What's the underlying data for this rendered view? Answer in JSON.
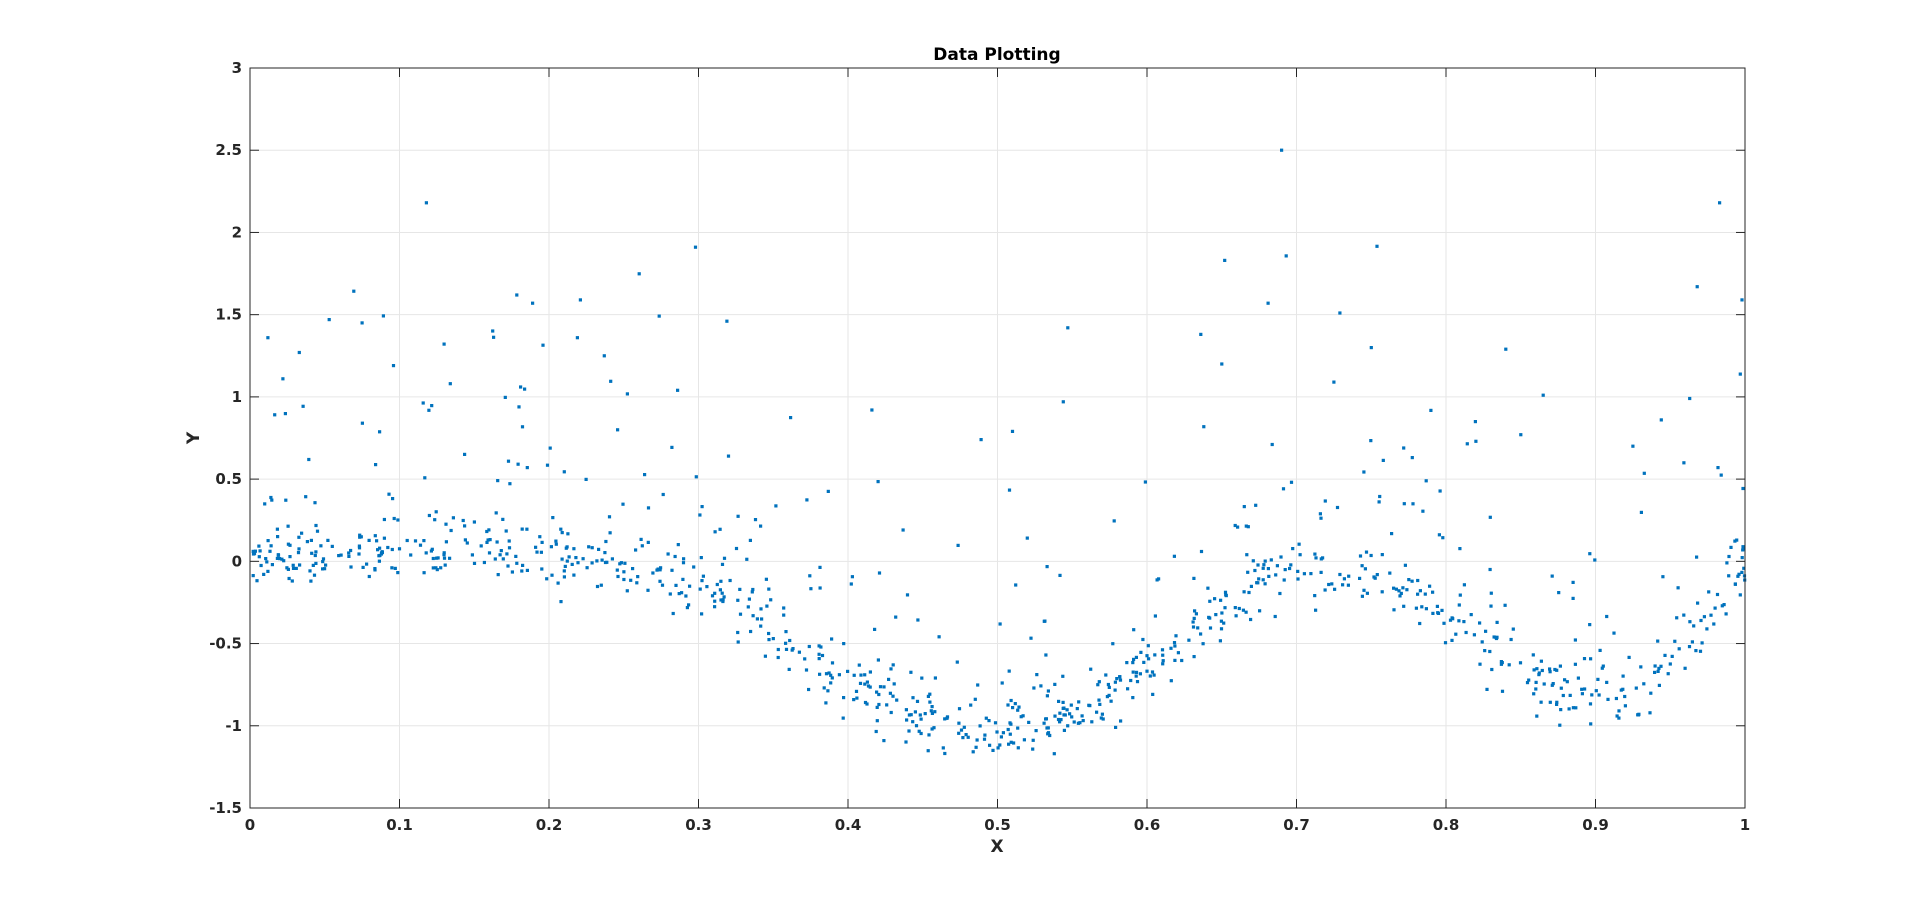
{
  "chart_data": {
    "type": "scatter",
    "title": "Data Plotting",
    "xlabel": "X",
    "ylabel": "Y",
    "xlim": [
      0,
      1
    ],
    "ylim": [
      -1.5,
      3
    ],
    "x_ticks": [
      0,
      0.1,
      0.2,
      0.3,
      0.4,
      0.5,
      0.6,
      0.7,
      0.8,
      0.9,
      1
    ],
    "x_tick_labels": [
      "0",
      "0.1",
      "0.2",
      "0.3",
      "0.4",
      "0.5",
      "0.6",
      "0.7",
      "0.8",
      "0.9",
      "1"
    ],
    "y_ticks": [
      -1.5,
      -1,
      -0.5,
      0,
      0.5,
      1,
      1.5,
      2,
      2.5,
      3
    ],
    "y_tick_labels": [
      "-1.5",
      "-1",
      "-0.5",
      "0",
      "0.5",
      "1",
      "1.5",
      "2",
      "2.5",
      "3"
    ],
    "grid": true,
    "marker_color": "#0072BD",
    "marker": "square",
    "estimated_point_count": 1000,
    "trend": "noisy sinusoid: y ≈ 0 near x=0, minimum ≈ -1 near x=0.5, maximum ≈ 0 near x=0.7, minimum ≈ -0.8 near x=0.88, rising to ≈ 0 at x=1, with scattered outliers up to 2.5",
    "highlighted_points": [
      {
        "x": 0.118,
        "y": 2.18
      },
      {
        "x": 0.298,
        "y": 1.91
      },
      {
        "x": 0.69,
        "y": 2.5
      },
      {
        "x": 0.983,
        "y": 2.18
      },
      {
        "x": 0.652,
        "y": 1.83
      },
      {
        "x": 0.968,
        "y": 1.67
      },
      {
        "x": 0.998,
        "y": 1.59
      },
      {
        "x": 0.189,
        "y": 1.57
      },
      {
        "x": 0.221,
        "y": 1.59
      },
      {
        "x": 0.681,
        "y": 1.57
      },
      {
        "x": 0.053,
        "y": 1.47
      },
      {
        "x": 0.075,
        "y": 1.45
      },
      {
        "x": 0.319,
        "y": 1.46
      },
      {
        "x": 0.547,
        "y": 1.42
      },
      {
        "x": 0.729,
        "y": 1.51
      },
      {
        "x": 0.012,
        "y": 1.36
      },
      {
        "x": 0.219,
        "y": 1.36
      },
      {
        "x": 0.636,
        "y": 1.38
      },
      {
        "x": 0.033,
        "y": 1.27
      },
      {
        "x": 0.237,
        "y": 1.25
      },
      {
        "x": 0.75,
        "y": 1.3
      },
      {
        "x": 0.84,
        "y": 1.29
      },
      {
        "x": 0.096,
        "y": 1.19
      },
      {
        "x": 0.65,
        "y": 1.2
      },
      {
        "x": 0.022,
        "y": 1.11
      },
      {
        "x": 0.134,
        "y": 1.08
      },
      {
        "x": 0.181,
        "y": 1.06
      },
      {
        "x": 0.286,
        "y": 1.04
      },
      {
        "x": 0.725,
        "y": 1.09
      },
      {
        "x": 0.865,
        "y": 1.01
      },
      {
        "x": 0.963,
        "y": 0.99
      },
      {
        "x": 0.544,
        "y": 0.97
      },
      {
        "x": 0.416,
        "y": 0.92
      },
      {
        "x": 0.489,
        "y": 0.74
      },
      {
        "x": 0.51,
        "y": 0.79
      },
      {
        "x": 0.944,
        "y": 0.86
      },
      {
        "x": 0.925,
        "y": 0.7
      },
      {
        "x": 0.82,
        "y": 0.73
      },
      {
        "x": 0.85,
        "y": 0.77
      },
      {
        "x": 0.497,
        "y": -1.15
      },
      {
        "x": 0.538,
        "y": -1.17
      },
      {
        "x": 0.424,
        "y": -1.09
      },
      {
        "x": 0.579,
        "y": -1.01
      },
      {
        "x": 0.929,
        "y": -0.93
      },
      {
        "x": 0.874,
        "y": -0.87
      }
    ]
  }
}
